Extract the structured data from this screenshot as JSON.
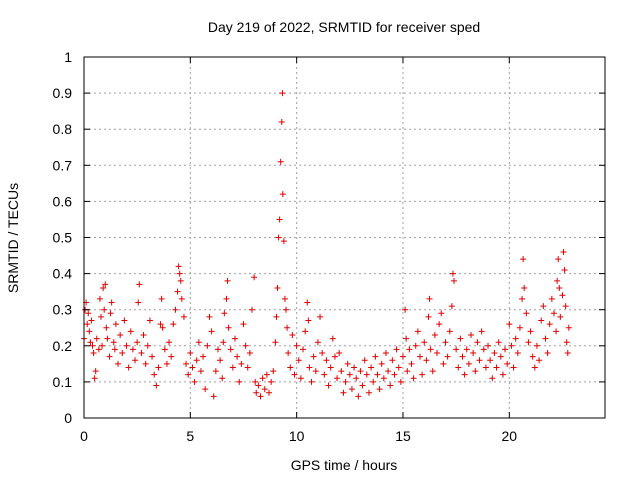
{
  "chart_data": {
    "type": "scatter",
    "title": "Day 219 of 2022, SRMTID for receiver sped",
    "xlabel": "GPS time / hours",
    "ylabel": "SRMTID / TECUs",
    "xlim": [
      0,
      24.5
    ],
    "ylim": [
      0,
      1
    ],
    "x_ticks": [
      "0",
      "5",
      "10",
      "15",
      "20"
    ],
    "x_tick_values": [
      0,
      5,
      10,
      15,
      20
    ],
    "y_ticks": [
      "0",
      "0.1",
      "0.2",
      "0.3",
      "0.4",
      "0.5",
      "0.6",
      "0.7",
      "0.8",
      "0.9",
      "1"
    ],
    "y_tick_values": [
      0,
      0.1,
      0.2,
      0.3,
      0.4,
      0.5,
      0.6,
      0.7,
      0.8,
      0.9,
      1
    ],
    "grid": true,
    "marker": "+",
    "color": "#e00000",
    "series": [
      {
        "name": "SRMTID",
        "points": [
          [
            0.0,
            0.22
          ],
          [
            0.05,
            0.3
          ],
          [
            0.1,
            0.32
          ],
          [
            0.15,
            0.26
          ],
          [
            0.2,
            0.29
          ],
          [
            0.25,
            0.24
          ],
          [
            0.3,
            0.21
          ],
          [
            0.35,
            0.27
          ],
          [
            0.4,
            0.2
          ],
          [
            0.45,
            0.18
          ],
          [
            0.5,
            0.11
          ],
          [
            0.55,
            0.13
          ],
          [
            0.6,
            0.22
          ],
          [
            0.7,
            0.19
          ],
          [
            0.75,
            0.33
          ],
          [
            0.8,
            0.28
          ],
          [
            0.85,
            0.2
          ],
          [
            0.9,
            0.36
          ],
          [
            0.95,
            0.3
          ],
          [
            1.0,
            0.37
          ],
          [
            1.05,
            0.25
          ],
          [
            1.1,
            0.22
          ],
          [
            1.2,
            0.17
          ],
          [
            1.25,
            0.29
          ],
          [
            1.3,
            0.32
          ],
          [
            1.4,
            0.21
          ],
          [
            1.45,
            0.19
          ],
          [
            1.5,
            0.26
          ],
          [
            1.6,
            0.15
          ],
          [
            1.7,
            0.23
          ],
          [
            1.8,
            0.18
          ],
          [
            1.9,
            0.27
          ],
          [
            2.0,
            0.2
          ],
          [
            2.1,
            0.14
          ],
          [
            2.2,
            0.24
          ],
          [
            2.3,
            0.19
          ],
          [
            2.4,
            0.16
          ],
          [
            2.5,
            0.21
          ],
          [
            2.55,
            0.32
          ],
          [
            2.6,
            0.37
          ],
          [
            2.7,
            0.18
          ],
          [
            2.8,
            0.23
          ],
          [
            2.9,
            0.15
          ],
          [
            3.0,
            0.2
          ],
          [
            3.1,
            0.27
          ],
          [
            3.2,
            0.17
          ],
          [
            3.3,
            0.12
          ],
          [
            3.4,
            0.09
          ],
          [
            3.5,
            0.14
          ],
          [
            3.6,
            0.26
          ],
          [
            3.65,
            0.33
          ],
          [
            3.7,
            0.25
          ],
          [
            3.8,
            0.19
          ],
          [
            3.9,
            0.15
          ],
          [
            4.0,
            0.21
          ],
          [
            4.1,
            0.17
          ],
          [
            4.2,
            0.26
          ],
          [
            4.3,
            0.3
          ],
          [
            4.4,
            0.35
          ],
          [
            4.45,
            0.42
          ],
          [
            4.5,
            0.4
          ],
          [
            4.55,
            0.38
          ],
          [
            4.6,
            0.33
          ],
          [
            4.7,
            0.28
          ],
          [
            4.8,
            0.15
          ],
          [
            4.9,
            0.12
          ],
          [
            5.0,
            0.18
          ],
          [
            5.1,
            0.14
          ],
          [
            5.2,
            0.1
          ],
          [
            5.3,
            0.16
          ],
          [
            5.4,
            0.21
          ],
          [
            5.5,
            0.13
          ],
          [
            5.6,
            0.17
          ],
          [
            5.7,
            0.08
          ],
          [
            5.8,
            0.2
          ],
          [
            5.9,
            0.28
          ],
          [
            6.0,
            0.24
          ],
          [
            6.1,
            0.06
          ],
          [
            6.2,
            0.13
          ],
          [
            6.3,
            0.19
          ],
          [
            6.4,
            0.16
          ],
          [
            6.5,
            0.11
          ],
          [
            6.55,
            0.21
          ],
          [
            6.6,
            0.29
          ],
          [
            6.7,
            0.33
          ],
          [
            6.75,
            0.38
          ],
          [
            6.8,
            0.25
          ],
          [
            6.9,
            0.19
          ],
          [
            7.0,
            0.14
          ],
          [
            7.1,
            0.22
          ],
          [
            7.2,
            0.17
          ],
          [
            7.3,
            0.1
          ],
          [
            7.4,
            0.15
          ],
          [
            7.5,
            0.26
          ],
          [
            7.6,
            0.2
          ],
          [
            7.7,
            0.14
          ],
          [
            7.8,
            0.18
          ],
          [
            7.9,
            0.3
          ],
          [
            8.0,
            0.39
          ],
          [
            8.05,
            0.1
          ],
          [
            8.1,
            0.07
          ],
          [
            8.2,
            0.09
          ],
          [
            8.3,
            0.06
          ],
          [
            8.4,
            0.11
          ],
          [
            8.5,
            0.08
          ],
          [
            8.6,
            0.12
          ],
          [
            8.7,
            0.07
          ],
          [
            8.8,
            0.1
          ],
          [
            8.9,
            0.13
          ],
          [
            9.0,
            0.21
          ],
          [
            9.05,
            0.28
          ],
          [
            9.1,
            0.36
          ],
          [
            9.15,
            0.5
          ],
          [
            9.2,
            0.55
          ],
          [
            9.25,
            0.71
          ],
          [
            9.3,
            0.82
          ],
          [
            9.33,
            0.9
          ],
          [
            9.35,
            0.62
          ],
          [
            9.4,
            0.49
          ],
          [
            9.45,
            0.33
          ],
          [
            9.5,
            0.3
          ],
          [
            9.55,
            0.25
          ],
          [
            9.6,
            0.18
          ],
          [
            9.7,
            0.14
          ],
          [
            9.8,
            0.23
          ],
          [
            9.9,
            0.12
          ],
          [
            10.0,
            0.2
          ],
          [
            10.1,
            0.16
          ],
          [
            10.2,
            0.11
          ],
          [
            10.3,
            0.19
          ],
          [
            10.4,
            0.24
          ],
          [
            10.5,
            0.32
          ],
          [
            10.55,
            0.27
          ],
          [
            10.6,
            0.14
          ],
          [
            10.7,
            0.1
          ],
          [
            10.8,
            0.17
          ],
          [
            10.9,
            0.13
          ],
          [
            11.0,
            0.21
          ],
          [
            11.1,
            0.28
          ],
          [
            11.2,
            0.18
          ],
          [
            11.3,
            0.12
          ],
          [
            11.4,
            0.16
          ],
          [
            11.5,
            0.09
          ],
          [
            11.6,
            0.14
          ],
          [
            11.7,
            0.22
          ],
          [
            11.8,
            0.17
          ],
          [
            11.9,
            0.11
          ],
          [
            12.0,
            0.18
          ],
          [
            12.1,
            0.13
          ],
          [
            12.2,
            0.07
          ],
          [
            12.3,
            0.1
          ],
          [
            12.4,
            0.15
          ],
          [
            12.5,
            0.12
          ],
          [
            12.6,
            0.08
          ],
          [
            12.7,
            0.14
          ],
          [
            12.8,
            0.11
          ],
          [
            12.9,
            0.06
          ],
          [
            13.0,
            0.13
          ],
          [
            13.1,
            0.09
          ],
          [
            13.2,
            0.16
          ],
          [
            13.3,
            0.12
          ],
          [
            13.4,
            0.07
          ],
          [
            13.5,
            0.14
          ],
          [
            13.6,
            0.1
          ],
          [
            13.7,
            0.17
          ],
          [
            13.8,
            0.12
          ],
          [
            13.9,
            0.08
          ],
          [
            14.0,
            0.15
          ],
          [
            14.1,
            0.11
          ],
          [
            14.2,
            0.18
          ],
          [
            14.3,
            0.13
          ],
          [
            14.4,
            0.09
          ],
          [
            14.5,
            0.16
          ],
          [
            14.6,
            0.12
          ],
          [
            14.7,
            0.19
          ],
          [
            14.8,
            0.14
          ],
          [
            14.9,
            0.1
          ],
          [
            15.0,
            0.17
          ],
          [
            15.1,
            0.3
          ],
          [
            15.15,
            0.22
          ],
          [
            15.2,
            0.13
          ],
          [
            15.3,
            0.19
          ],
          [
            15.4,
            0.15
          ],
          [
            15.5,
            0.11
          ],
          [
            15.6,
            0.2
          ],
          [
            15.7,
            0.24
          ],
          [
            15.8,
            0.17
          ],
          [
            15.9,
            0.12
          ],
          [
            16.0,
            0.21
          ],
          [
            16.1,
            0.16
          ],
          [
            16.2,
            0.28
          ],
          [
            16.25,
            0.33
          ],
          [
            16.3,
            0.19
          ],
          [
            16.4,
            0.13
          ],
          [
            16.5,
            0.23
          ],
          [
            16.6,
            0.18
          ],
          [
            16.7,
            0.26
          ],
          [
            16.8,
            0.29
          ],
          [
            16.9,
            0.15
          ],
          [
            17.0,
            0.21
          ],
          [
            17.1,
            0.17
          ],
          [
            17.2,
            0.24
          ],
          [
            17.3,
            0.31
          ],
          [
            17.35,
            0.4
          ],
          [
            17.4,
            0.38
          ],
          [
            17.5,
            0.19
          ],
          [
            17.6,
            0.14
          ],
          [
            17.7,
            0.22
          ],
          [
            17.8,
            0.17
          ],
          [
            17.9,
            0.12
          ],
          [
            18.0,
            0.19
          ],
          [
            18.1,
            0.15
          ],
          [
            18.2,
            0.23
          ],
          [
            18.3,
            0.18
          ],
          [
            18.4,
            0.13
          ],
          [
            18.5,
            0.21
          ],
          [
            18.6,
            0.16
          ],
          [
            18.7,
            0.24
          ],
          [
            18.8,
            0.19
          ],
          [
            18.9,
            0.14
          ],
          [
            19.0,
            0.2
          ],
          [
            19.1,
            0.16
          ],
          [
            19.2,
            0.11
          ],
          [
            19.3,
            0.18
          ],
          [
            19.4,
            0.14
          ],
          [
            19.5,
            0.21
          ],
          [
            19.6,
            0.17
          ],
          [
            19.7,
            0.12
          ],
          [
            19.8,
            0.19
          ],
          [
            19.9,
            0.15
          ],
          [
            20.0,
            0.26
          ],
          [
            20.1,
            0.2
          ],
          [
            20.2,
            0.14
          ],
          [
            20.3,
            0.22
          ],
          [
            20.4,
            0.18
          ],
          [
            20.5,
            0.25
          ],
          [
            20.6,
            0.33
          ],
          [
            20.65,
            0.44
          ],
          [
            20.7,
            0.36
          ],
          [
            20.8,
            0.29
          ],
          [
            20.9,
            0.21
          ],
          [
            21.0,
            0.24
          ],
          [
            21.1,
            0.17
          ],
          [
            21.2,
            0.14
          ],
          [
            21.3,
            0.2
          ],
          [
            21.4,
            0.16
          ],
          [
            21.5,
            0.27
          ],
          [
            21.6,
            0.31
          ],
          [
            21.7,
            0.22
          ],
          [
            21.8,
            0.18
          ],
          [
            21.9,
            0.26
          ],
          [
            22.0,
            0.33
          ],
          [
            22.1,
            0.29
          ],
          [
            22.2,
            0.24
          ],
          [
            22.25,
            0.38
          ],
          [
            22.3,
            0.44
          ],
          [
            22.35,
            0.36
          ],
          [
            22.4,
            0.28
          ],
          [
            22.5,
            0.34
          ],
          [
            22.55,
            0.46
          ],
          [
            22.6,
            0.41
          ],
          [
            22.65,
            0.31
          ],
          [
            22.7,
            0.21
          ],
          [
            22.75,
            0.18
          ],
          [
            22.8,
            0.25
          ]
        ]
      }
    ]
  }
}
